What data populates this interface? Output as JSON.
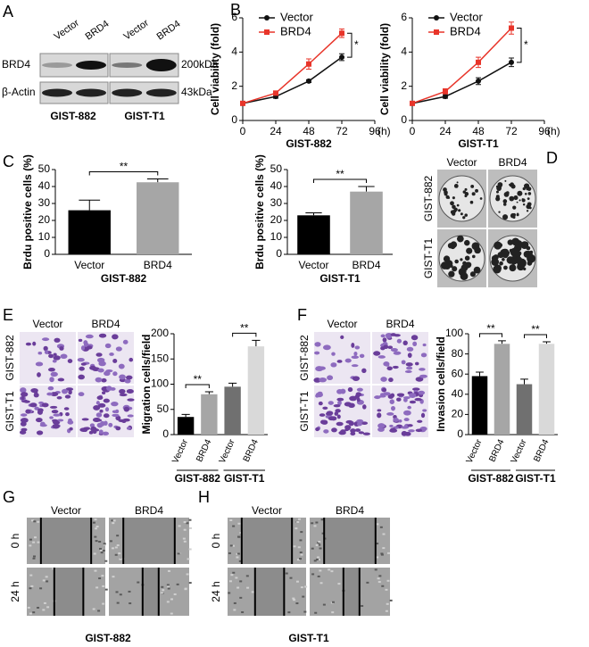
{
  "panels": [
    "A",
    "B",
    "C",
    "D",
    "E",
    "F",
    "G",
    "H"
  ],
  "blot": {
    "lanes": [
      "Vector",
      "BRD4",
      "Vector",
      "BRD4"
    ],
    "rows": [
      "BRD4",
      "β-Actin"
    ],
    "sizes": [
      "200kDa",
      "43kDa"
    ],
    "groups": [
      "GIST-882",
      "GIST-T1"
    ]
  },
  "colony": {
    "columns": [
      "Vector",
      "BRD4"
    ],
    "rows": [
      "GIST-882",
      "GIST-T1"
    ]
  },
  "transwell_e": {
    "columns": [
      "Vector",
      "BRD4"
    ],
    "rows": [
      "GIST-882",
      "GIST-T1"
    ]
  },
  "transwell_f": {
    "columns": [
      "Vector",
      "BRD4"
    ],
    "rows": [
      "GIST-882",
      "GIST-T1"
    ]
  },
  "wound_g": {
    "columns": [
      "Vector",
      "BRD4"
    ],
    "rows": [
      "0 h",
      "24 h"
    ],
    "caption": "GIST-882"
  },
  "wound_h": {
    "columns": [
      "Vector",
      "BRD4"
    ],
    "rows": [
      "0 h",
      "24 h"
    ],
    "caption": "GIST-T1"
  },
  "chart_data": [
    {
      "type": "line",
      "xlabel": "GIST-882",
      "ylabel": "Cell viability (fold)",
      "x_unit": "(h)",
      "x": [
        0,
        24,
        48,
        72
      ],
      "xlim": [
        0,
        96
      ],
      "xticks": [
        0,
        24,
        48,
        72,
        96
      ],
      "ylim": [
        0,
        6
      ],
      "yticks": [
        0,
        2,
        4,
        6
      ],
      "series": [
        {
          "name": "Vector",
          "color": "#111111",
          "values": [
            1,
            1.4,
            2.3,
            3.7
          ],
          "errors": [
            0.05,
            0.1,
            0.08,
            0.2
          ]
        },
        {
          "name": "BRD4",
          "color": "#e8352a",
          "values": [
            1,
            1.6,
            3.3,
            5.1
          ],
          "errors": [
            0.05,
            0.1,
            0.3,
            0.25
          ]
        }
      ],
      "annotations": [
        "*"
      ]
    },
    {
      "type": "line",
      "xlabel": "GIST-T1",
      "ylabel": "Cell viability (fold)",
      "x_unit": "(h)",
      "x": [
        0,
        24,
        48,
        72
      ],
      "xlim": [
        0,
        96
      ],
      "xticks": [
        0,
        24,
        48,
        72,
        96
      ],
      "ylim": [
        0,
        6
      ],
      "yticks": [
        0,
        2,
        4,
        6
      ],
      "series": [
        {
          "name": "Vector",
          "color": "#111111",
          "values": [
            1,
            1.4,
            2.3,
            3.4
          ],
          "errors": [
            0.05,
            0.1,
            0.2,
            0.25
          ]
        },
        {
          "name": "BRD4",
          "color": "#e8352a",
          "values": [
            1,
            1.7,
            3.4,
            5.4
          ],
          "errors": [
            0.05,
            0.15,
            0.3,
            0.35
          ]
        }
      ],
      "annotations": [
        "*"
      ]
    },
    {
      "type": "bar",
      "xlabel": "GIST-882",
      "ylabel": "Brdu positive cells (%)",
      "categories": [
        "Vector",
        "BRD4"
      ],
      "values": [
        26,
        42.5
      ],
      "errors": [
        6,
        2
      ],
      "colors": [
        "#000000",
        "#a6a6a6"
      ],
      "ylim": [
        0,
        50
      ],
      "yticks": [
        0,
        10,
        20,
        30,
        40,
        50
      ],
      "annotations": [
        "**"
      ]
    },
    {
      "type": "bar",
      "xlabel": "GIST-T1",
      "ylabel": "Brdu positive cells (%)",
      "categories": [
        "Vector",
        "BRD4"
      ],
      "values": [
        23,
        37
      ],
      "errors": [
        1.5,
        3
      ],
      "colors": [
        "#000000",
        "#a6a6a6"
      ],
      "ylim": [
        0,
        50
      ],
      "yticks": [
        0,
        10,
        20,
        30,
        40,
        50
      ],
      "annotations": [
        "**"
      ]
    },
    {
      "type": "bar",
      "ylabel": "Migration cells/field",
      "groups": [
        "GIST-882",
        "GIST-T1"
      ],
      "categories": [
        "Vector",
        "BRD4",
        "Vector",
        "BRD4"
      ],
      "values": [
        35,
        80,
        95,
        175
      ],
      "errors": [
        5,
        5,
        7,
        12
      ],
      "colors": [
        "#000000",
        "#a6a6a6",
        "#707070",
        "#d9d9d9"
      ],
      "ylim": [
        0,
        200
      ],
      "yticks": [
        0,
        50,
        100,
        150,
        200
      ],
      "annotations": [
        "**",
        "**"
      ]
    },
    {
      "type": "bar",
      "ylabel": "Invasion cells/field",
      "groups": [
        "GIST-882",
        "GIST-T1"
      ],
      "categories": [
        "Vector",
        "BRD4",
        "Vector",
        "BRD4"
      ],
      "values": [
        58,
        90,
        50,
        90
      ],
      "errors": [
        4,
        3,
        5,
        2
      ],
      "colors": [
        "#000000",
        "#a6a6a6",
        "#707070",
        "#d9d9d9"
      ],
      "ylim": [
        0,
        100
      ],
      "yticks": [
        0,
        20,
        40,
        60,
        80,
        100
      ],
      "annotations": [
        "**",
        "**"
      ]
    }
  ]
}
